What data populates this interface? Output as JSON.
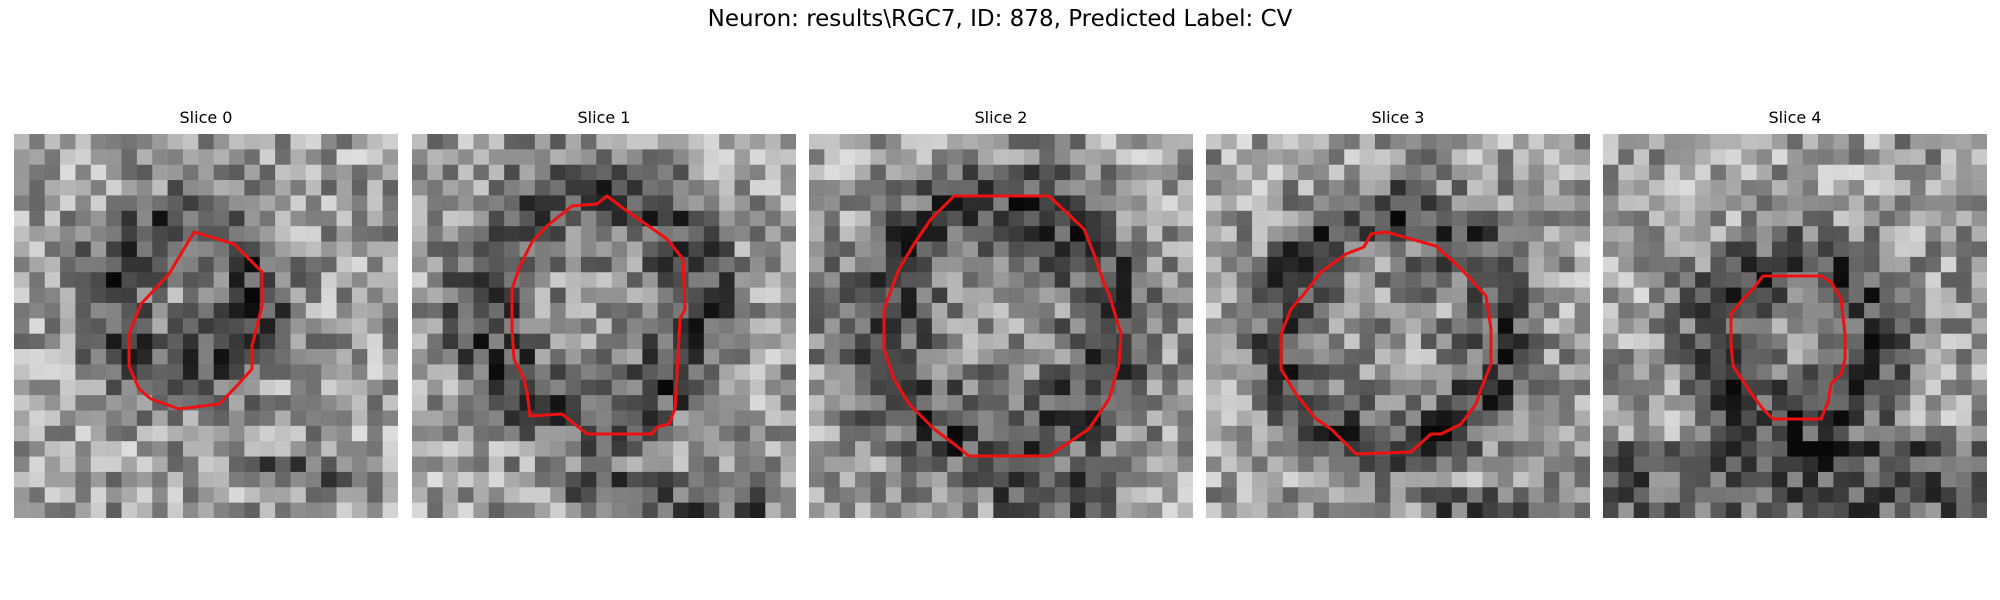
{
  "figure": {
    "title": "Neuron: results\\RGC7, ID: 878, Predicted Label: CV"
  },
  "panels": [
    {
      "title": "Slice 0"
    },
    {
      "title": "Slice 1"
    },
    {
      "title": "Slice 2"
    },
    {
      "title": "Slice 3"
    },
    {
      "title": "Slice 4"
    }
  ],
  "colors": {
    "contour": "#ee1111",
    "background": "#ffffff"
  }
}
